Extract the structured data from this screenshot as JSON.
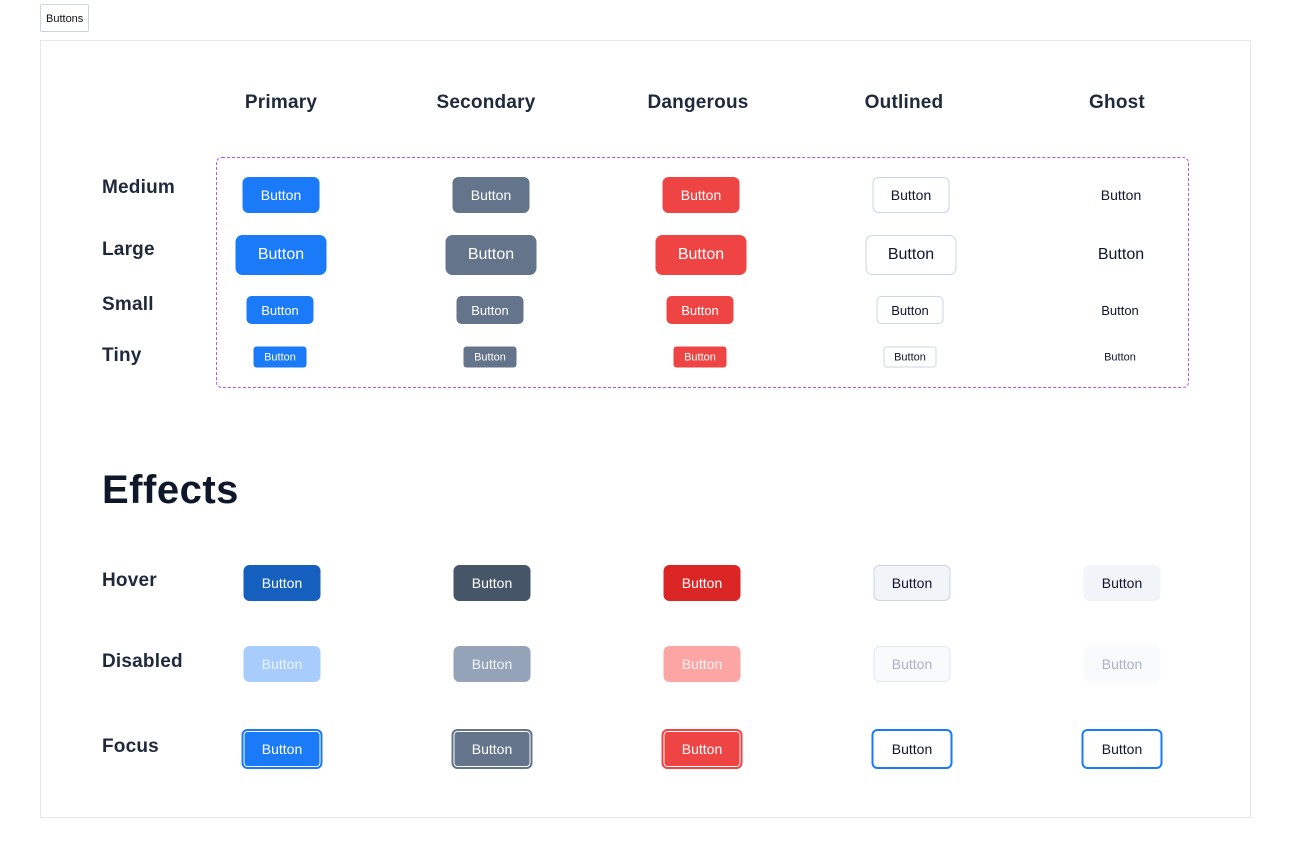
{
  "tab": {
    "label": "Buttons"
  },
  "columns": [
    "Primary",
    "Secondary",
    "Dangerous",
    "Outlined",
    "Ghost"
  ],
  "size_rows": [
    "Medium",
    "Large",
    "Small",
    "Tiny"
  ],
  "effects": {
    "title": "Effects",
    "rows": [
      "Hover",
      "Disabled",
      "Focus"
    ]
  },
  "button_label": "Button",
  "colors": {
    "primary": "#1a7af7",
    "secondary": "#64748b",
    "dangerous": "#ef4444",
    "outline_border": "#cbd5e1",
    "focus_ring": "#1a7af7",
    "size_box_border": "#a855f7"
  }
}
